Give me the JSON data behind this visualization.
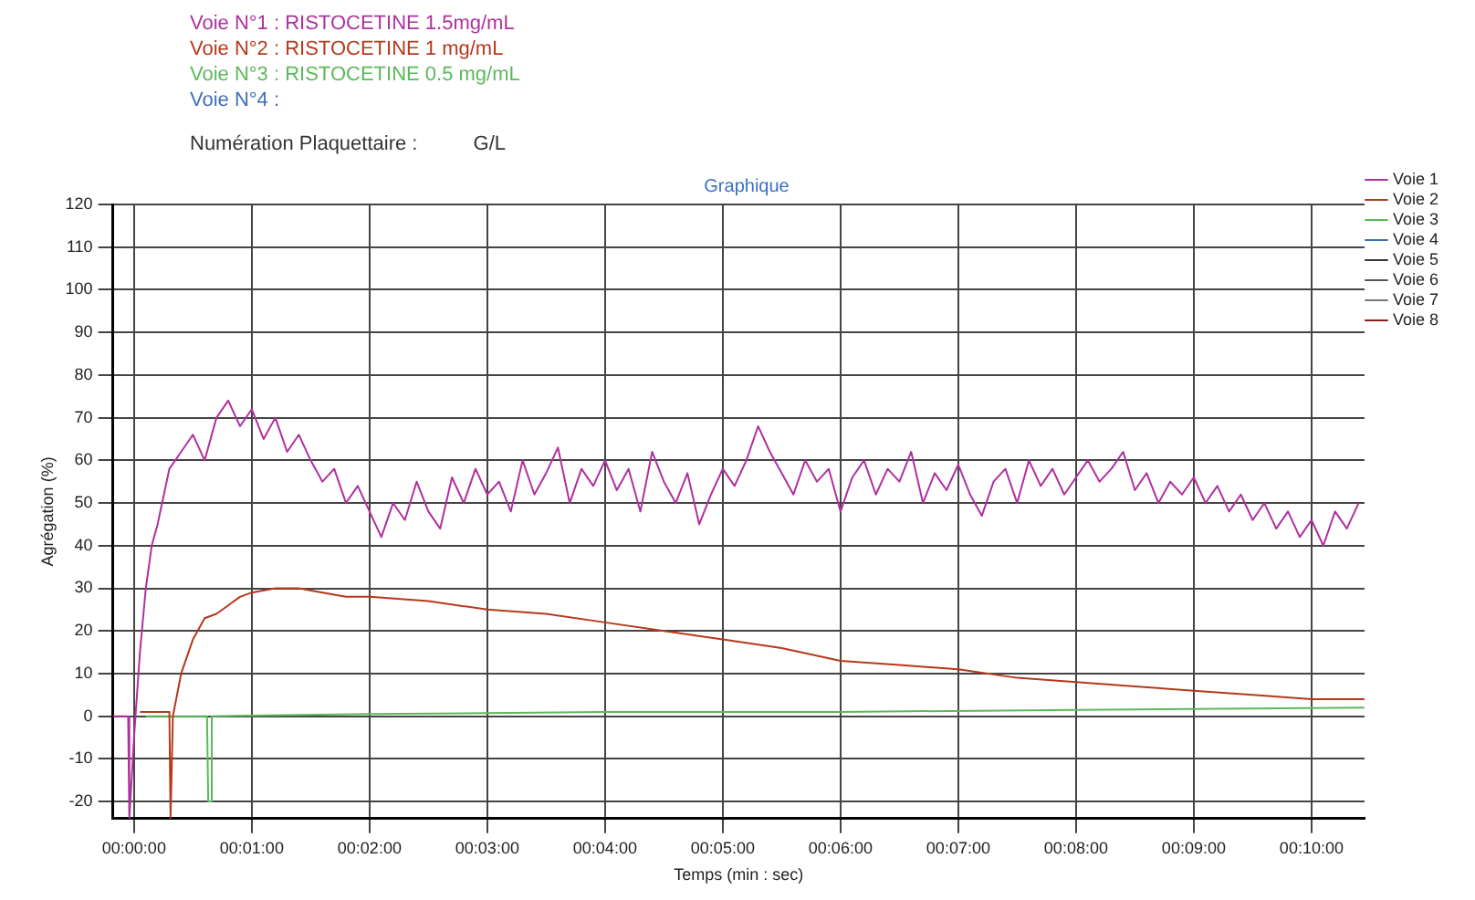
{
  "chart_data": {
    "type": "line",
    "title": "Graphique",
    "xlabel": "Temps (min : sec)",
    "ylabel": "Agrégation (%)",
    "annotations": [
      "Voie N°1 : RISTOCETINE 1.5mg/mL",
      "Voie N°2 : RISTOCETINE 1 mg/mL",
      "Voie N°3 : RISTOCETINE 0.5 mg/mL",
      "Voie N°4 :",
      "Numération Plaquettaire :          G/L"
    ],
    "xlim": [
      -0.18,
      10.45
    ],
    "xticks": [
      {
        "value": 0,
        "label": "00:00:00"
      },
      {
        "value": 1,
        "label": "00:01:00"
      },
      {
        "value": 2,
        "label": "00:02:00"
      },
      {
        "value": 3,
        "label": "00:03:00"
      },
      {
        "value": 4,
        "label": "00:04:00"
      },
      {
        "value": 5,
        "label": "00:05:00"
      },
      {
        "value": 6,
        "label": "00:06:00"
      },
      {
        "value": 7,
        "label": "00:07:00"
      },
      {
        "value": 8,
        "label": "00:08:00"
      },
      {
        "value": 9,
        "label": "00:09:00"
      },
      {
        "value": 10,
        "label": "00:10:00"
      }
    ],
    "ylim": [
      -24,
      120
    ],
    "yticks": [
      -20,
      -10,
      0,
      10,
      20,
      30,
      40,
      50,
      60,
      70,
      80,
      90,
      100,
      110,
      120
    ],
    "grid": true,
    "legend": "right",
    "marker": "none",
    "line_style": "solid",
    "series": [
      {
        "name": "Voie 1",
        "color": "#b0309f",
        "x": [
          -0.18,
          -0.05,
          -0.04,
          0,
          0.05,
          0.1,
          0.15,
          0.2,
          0.3,
          0.4,
          0.5,
          0.6,
          0.7,
          0.8,
          0.9,
          1.0,
          1.1,
          1.2,
          1.3,
          1.4,
          1.5,
          1.6,
          1.7,
          1.8,
          1.9,
          2.0,
          2.1,
          2.2,
          2.3,
          2.4,
          2.5,
          2.6,
          2.7,
          2.8,
          2.9,
          3.0,
          3.1,
          3.2,
          3.3,
          3.4,
          3.5,
          3.6,
          3.7,
          3.8,
          3.9,
          4.0,
          4.1,
          4.2,
          4.3,
          4.4,
          4.5,
          4.6,
          4.7,
          4.8,
          4.9,
          5.0,
          5.1,
          5.2,
          5.3,
          5.4,
          5.5,
          5.6,
          5.7,
          5.8,
          5.9,
          6.0,
          6.1,
          6.2,
          6.3,
          6.4,
          6.5,
          6.6,
          6.7,
          6.8,
          6.9,
          7.0,
          7.1,
          7.2,
          7.3,
          7.4,
          7.5,
          7.6,
          7.7,
          7.8,
          7.9,
          8.0,
          8.1,
          8.2,
          8.3,
          8.4,
          8.5,
          8.6,
          8.7,
          8.8,
          8.9,
          9.0,
          9.1,
          9.2,
          9.3,
          9.4,
          9.5,
          9.6,
          9.7,
          9.8,
          9.9,
          10.0,
          10.1,
          10.2,
          10.3,
          10.4
        ],
        "values": [
          0,
          0,
          -24,
          -5,
          15,
          30,
          40,
          45,
          58,
          62,
          66,
          60,
          70,
          74,
          68,
          72,
          65,
          70,
          62,
          66,
          60,
          55,
          58,
          50,
          54,
          48,
          42,
          50,
          46,
          55,
          48,
          44,
          56,
          50,
          58,
          52,
          55,
          48,
          60,
          52,
          57,
          63,
          50,
          58,
          54,
          60,
          53,
          58,
          48,
          62,
          55,
          50,
          57,
          45,
          52,
          58,
          54,
          60,
          68,
          62,
          57,
          52,
          60,
          55,
          58,
          48,
          56,
          60,
          52,
          58,
          55,
          62,
          50,
          57,
          53,
          59,
          52,
          47,
          55,
          58,
          50,
          60,
          54,
          58,
          52,
          56,
          60,
          55,
          58,
          62,
          53,
          57,
          50,
          55,
          52,
          56,
          50,
          54,
          48,
          52,
          46,
          50,
          44,
          48,
          42,
          46,
          40,
          48,
          44,
          50
        ]
      },
      {
        "name": "Voie 2",
        "color": "#b5391c",
        "x": [
          0.05,
          0.3,
          0.31,
          0.33,
          0.4,
          0.5,
          0.6,
          0.7,
          0.8,
          0.9,
          1.0,
          1.2,
          1.4,
          1.6,
          1.8,
          2.0,
          2.5,
          3.0,
          3.5,
          4.0,
          4.5,
          5.0,
          5.5,
          6.0,
          6.5,
          7.0,
          7.5,
          8.0,
          8.5,
          9.0,
          9.5,
          10.0,
          10.45
        ],
        "values": [
          1,
          1,
          -24,
          0,
          10,
          18,
          23,
          24,
          26,
          28,
          29,
          30,
          30,
          29,
          28,
          28,
          27,
          25,
          24,
          22,
          20,
          18,
          16,
          13,
          12,
          11,
          9,
          8,
          7,
          6,
          5,
          4,
          4
        ]
      },
      {
        "name": "Voie 3",
        "color": "#5cb85c",
        "x": [
          0.1,
          0.62,
          0.63,
          0.65,
          0.66,
          2,
          4,
          6,
          8,
          10.45
        ],
        "values": [
          0,
          0,
          -20,
          -20,
          0,
          0.5,
          1,
          1,
          1.5,
          2
        ]
      },
      {
        "name": "Voie 4",
        "color": "#3f6fb5"
      },
      {
        "name": "Voie 5",
        "color": "#333333"
      },
      {
        "name": "Voie 6",
        "color": "#555555"
      },
      {
        "name": "Voie 7",
        "color": "#777777"
      },
      {
        "name": "Voie 8",
        "color": "#8b1a1a"
      }
    ]
  }
}
